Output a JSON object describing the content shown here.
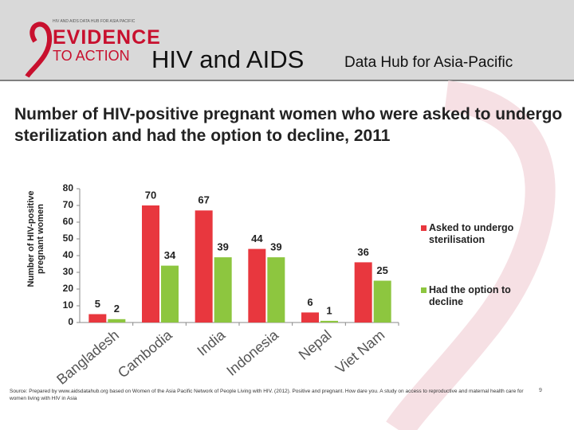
{
  "header": {
    "logo_small": "HIV AND AIDS DATA HUB FOR ASIA PACIFIC",
    "logo_top": "EVIDENCE",
    "logo_bottom": "TO ACTION",
    "title": "HIV and AIDS",
    "subtitle": "Data Hub for Asia-Pacific"
  },
  "chart_data": {
    "type": "bar",
    "title": "Number of HIV-positive pregnant women who were asked to undergo sterilization and had the option to decline, 2011",
    "y_label": "Number of HIV-positive pregnant women",
    "categories": [
      "Bangladesh",
      "Cambodia",
      "India",
      "Indonesia",
      "Nepal",
      "Viet Nam"
    ],
    "series": [
      {
        "name": "Asked to undergo sterilisation",
        "color": "#e8373e",
        "values": [
          5,
          70,
          67,
          44,
          6,
          36
        ]
      },
      {
        "name": "Had the option to decline",
        "color": "#8dc63f",
        "values": [
          2,
          34,
          39,
          39,
          1,
          25
        ]
      }
    ],
    "ylim": [
      0,
      80
    ],
    "yticks": [
      0,
      10,
      20,
      30,
      40,
      50,
      60,
      70,
      80
    ],
    "grid": false,
    "legend": "right"
  },
  "footer": {
    "source": "Source: Prepared by www.aidsdatahub.org based on Women of the Asia Pacific Network of People Living with HIV. (2012). Positive and pregnant. How dare you. A study on access to reproductive and maternal health care for women living with HIV in Asia",
    "page": "9"
  }
}
